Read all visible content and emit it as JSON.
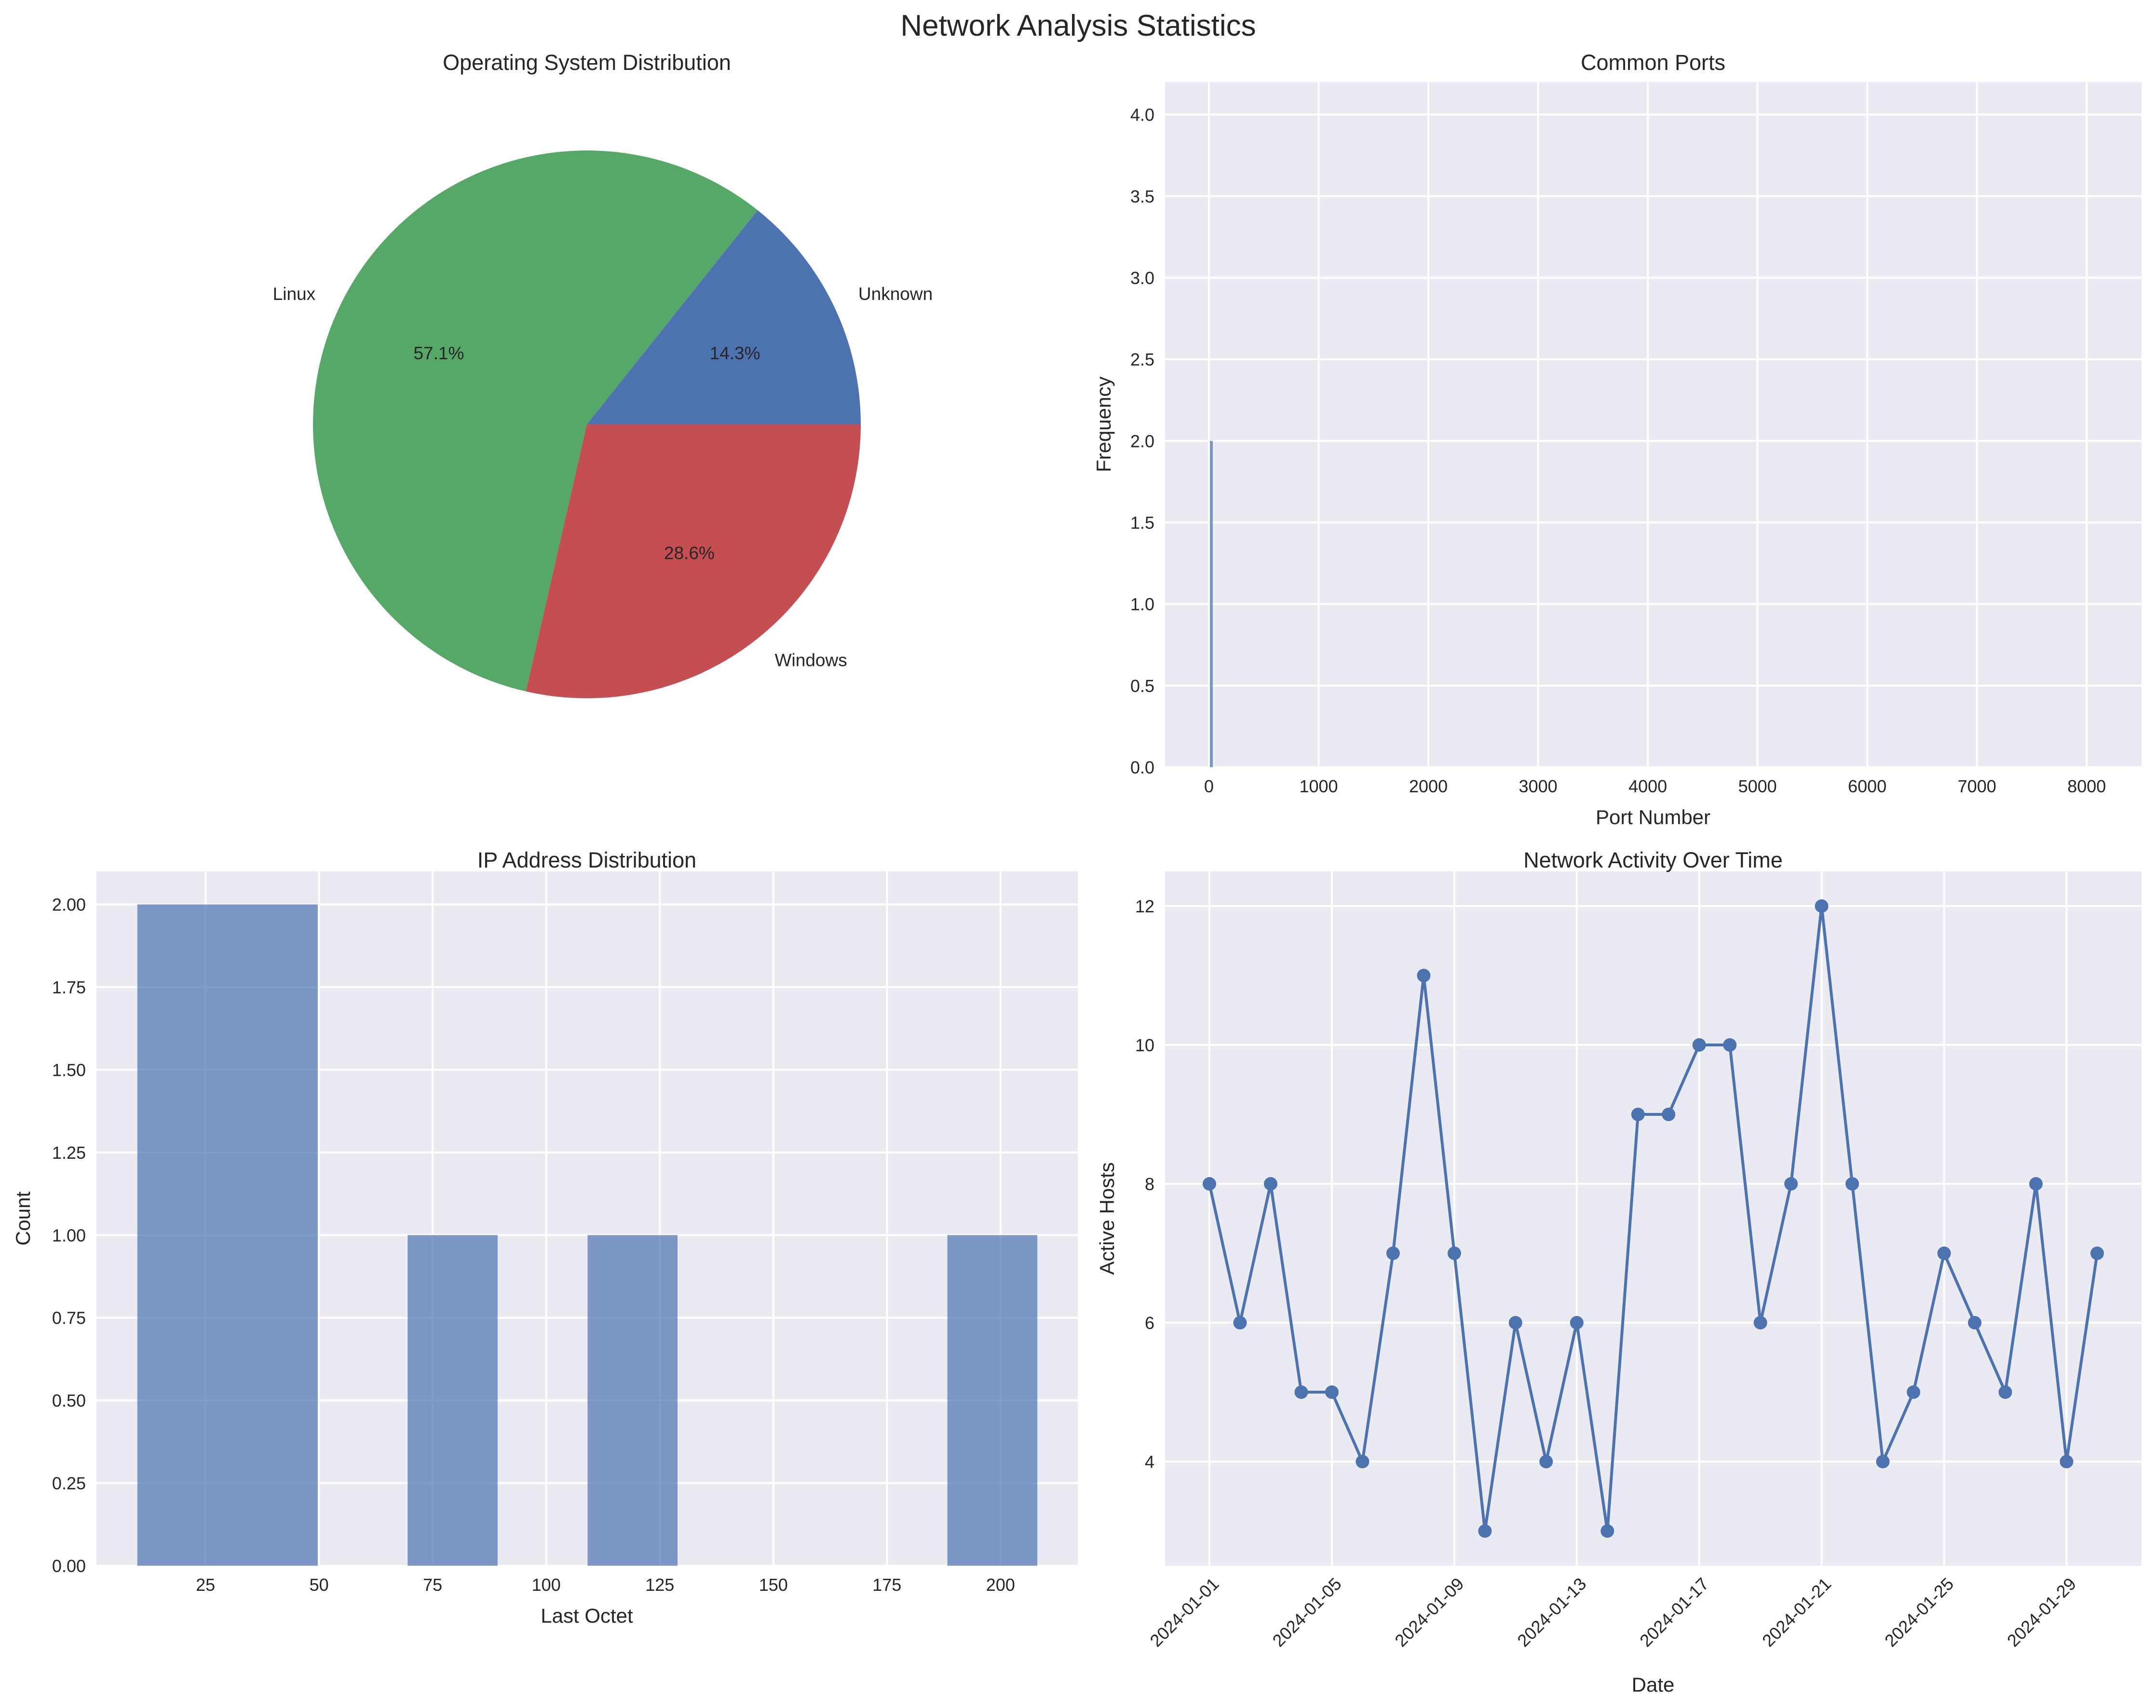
{
  "figure": {
    "suptitle": "Network Analysis Statistics"
  },
  "chart_data": [
    {
      "type": "pie",
      "title": "Operating System Distribution",
      "labels": [
        "Unknown",
        "Linux",
        "Windows"
      ],
      "values": [
        1,
        4,
        2
      ],
      "percent_labels": [
        "14.3%",
        "57.1%",
        "28.6%"
      ],
      "colors": [
        "#4c72b0",
        "#55a868",
        "#c44e52"
      ],
      "start_angle": 0,
      "direction": "counterclockwise"
    },
    {
      "type": "bar",
      "title": "Common Ports",
      "xlabel": "Port Number",
      "ylabel": "Frequency",
      "xlim": [
        -400,
        8500
      ],
      "ylim": [
        0,
        4.2
      ],
      "xticks": [
        0,
        1000,
        2000,
        3000,
        4000,
        5000,
        6000,
        7000,
        8000
      ],
      "xtick_labels": [
        "0",
        "1000",
        "2000",
        "3000",
        "4000",
        "5000",
        "6000",
        "7000",
        "8000"
      ],
      "yticks": [
        0,
        0.5,
        1,
        1.5,
        2,
        2.5,
        3,
        3.5,
        4
      ],
      "ytick_labels": [
        "0.0",
        "0.5",
        "1.0",
        "1.5",
        "2.0",
        "2.5",
        "3.0",
        "3.5",
        "4.0"
      ],
      "bars": [
        {
          "port": 22,
          "value": 2
        }
      ],
      "color": "#4c72b0",
      "grid": true
    },
    {
      "type": "bar",
      "title": "IP Address Distribution",
      "xlabel": "Last Octet",
      "ylabel": "Count",
      "xlim": [
        1,
        217
      ],
      "ylim": [
        0,
        2.1
      ],
      "xticks": [
        25,
        50,
        75,
        100,
        125,
        150,
        175,
        200
      ],
      "xtick_labels": [
        "25",
        "50",
        "75",
        "100",
        "125",
        "150",
        "175",
        "200"
      ],
      "yticks": [
        0,
        0.25,
        0.5,
        0.75,
        1,
        1.25,
        1.5,
        1.75,
        2
      ],
      "ytick_labels": [
        "0.00",
        "0.25",
        "0.50",
        "0.75",
        "1.00",
        "1.25",
        "1.50",
        "1.75",
        "2.00"
      ],
      "bins": [
        {
          "from": 10,
          "to": 49.7,
          "value": 2
        },
        {
          "from": 69.5,
          "to": 89.3,
          "value": 1
        },
        {
          "from": 109.1,
          "to": 128.9,
          "value": 1
        },
        {
          "from": 188.3,
          "to": 208.1,
          "value": 1
        }
      ],
      "color": "#4c72b0",
      "alpha": 0.7,
      "grid": true
    },
    {
      "type": "line",
      "title": "Network Activity Over Time",
      "xlabel": "Date",
      "ylabel": "Active Hosts",
      "ylim": [
        2.5,
        12.5
      ],
      "yticks": [
        4,
        6,
        8,
        10,
        12
      ],
      "ytick_labels": [
        "4",
        "6",
        "8",
        "10",
        "12"
      ],
      "xtick_labels": [
        "2024-01-01",
        "2024-01-05",
        "2024-01-09",
        "2024-01-13",
        "2024-01-17",
        "2024-01-21",
        "2024-01-25",
        "2024-01-29"
      ],
      "series": [
        {
          "x": [
            "2024-01-01",
            "2024-01-02",
            "2024-01-03",
            "2024-01-04",
            "2024-01-05",
            "2024-01-06",
            "2024-01-07",
            "2024-01-08",
            "2024-01-09",
            "2024-01-10",
            "2024-01-11",
            "2024-01-12",
            "2024-01-13",
            "2024-01-14",
            "2024-01-15",
            "2024-01-16",
            "2024-01-17",
            "2024-01-18",
            "2024-01-19",
            "2024-01-20",
            "2024-01-21",
            "2024-01-22",
            "2024-01-23",
            "2024-01-24",
            "2024-01-25",
            "2024-01-26",
            "2024-01-27",
            "2024-01-28",
            "2024-01-29",
            "2024-01-30"
          ],
          "values": [
            8,
            6,
            8,
            5,
            5,
            4,
            7,
            11,
            7,
            3,
            6,
            4,
            6,
            3,
            9,
            9,
            10,
            10,
            6,
            8,
            12,
            8,
            4,
            5,
            7,
            6,
            5,
            8,
            4,
            7
          ]
        }
      ],
      "color": "#4c72b0",
      "marker": "circle",
      "grid": true
    }
  ]
}
